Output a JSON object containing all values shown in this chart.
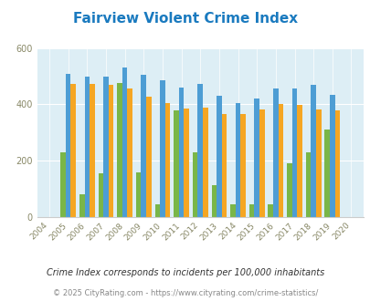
{
  "title": "Fairview Violent Crime Index",
  "years": [
    2004,
    2005,
    2006,
    2007,
    2008,
    2009,
    2010,
    2011,
    2012,
    2013,
    2014,
    2015,
    2016,
    2017,
    2018,
    2019,
    2020
  ],
  "fairview": [
    0,
    230,
    80,
    155,
    475,
    158,
    45,
    380,
    230,
    113,
    45,
    45,
    43,
    190,
    230,
    310,
    0
  ],
  "oklahoma": [
    0,
    510,
    500,
    500,
    530,
    505,
    485,
    460,
    472,
    430,
    405,
    420,
    455,
    458,
    468,
    435,
    0
  ],
  "national": [
    0,
    472,
    473,
    468,
    458,
    428,
    404,
    385,
    388,
    365,
    367,
    383,
    400,
    397,
    383,
    378,
    0
  ],
  "fairview_color": "#7ab648",
  "oklahoma_color": "#4d9dd4",
  "national_color": "#f5a623",
  "bg_color": "#ddeef5",
  "ylim": [
    0,
    600
  ],
  "yticks": [
    0,
    200,
    400,
    600
  ],
  "subtitle": "Crime Index corresponds to incidents per 100,000 inhabitants",
  "footer": "© 2025 CityRating.com - https://www.cityrating.com/crime-statistics/",
  "title_color": "#1a7abf",
  "subtitle_color": "#333333",
  "footer_color": "#888888"
}
